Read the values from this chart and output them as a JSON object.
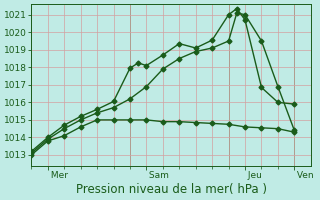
{
  "xlabel": "Pression niveau de la mer( hPa )",
  "bg_color": "#c0ebe5",
  "grid_color": "#d4a0a0",
  "line_color": "#1a5c1a",
  "ylim": [
    1012.4,
    1021.6
  ],
  "yticks": [
    1013,
    1014,
    1015,
    1016,
    1017,
    1018,
    1019,
    1020,
    1021
  ],
  "day_labels": [
    " Mer",
    " Sam",
    " Jeu",
    " Ven"
  ],
  "day_positions": [
    0.5,
    3.5,
    6.5,
    8.0
  ],
  "xmin": 0.0,
  "xmax": 8.5,
  "n_xgrid": 17,
  "marker": "D",
  "markersize": 2.5,
  "linewidth": 1.0,
  "xlabel_fontsize": 8.5,
  "tick_fontsize": 6.5,
  "series1_x": [
    0.0,
    0.5,
    1.0,
    1.5,
    2.0,
    2.5,
    3.0,
    3.5,
    4.0,
    4.5,
    5.0,
    5.5,
    6.0,
    6.5,
    7.0,
    7.5,
    8.0
  ],
  "series1_y": [
    1013.0,
    1013.8,
    1014.1,
    1014.6,
    1015.0,
    1015.0,
    1015.0,
    1015.0,
    1014.9,
    1014.9,
    1014.85,
    1014.8,
    1014.75,
    1014.6,
    1014.55,
    1014.5,
    1014.3
  ],
  "series2_x": [
    0.0,
    0.5,
    1.0,
    1.5,
    2.0,
    2.5,
    3.0,
    3.5,
    4.0,
    4.5,
    5.0,
    5.5,
    6.0,
    6.25,
    6.5,
    7.0,
    7.5,
    8.0
  ],
  "series2_y": [
    1013.1,
    1013.9,
    1014.5,
    1015.0,
    1015.4,
    1015.7,
    1016.2,
    1016.9,
    1017.9,
    1018.5,
    1018.9,
    1019.1,
    1019.5,
    1021.1,
    1021.0,
    1019.5,
    1016.9,
    1014.4
  ],
  "series3_x": [
    0.0,
    0.5,
    1.0,
    1.5,
    2.0,
    2.5,
    3.0,
    3.25,
    3.5,
    4.0,
    4.5,
    5.0,
    5.5,
    6.0,
    6.25,
    6.5,
    7.0,
    7.5,
    8.0
  ],
  "series3_y": [
    1013.2,
    1014.0,
    1014.7,
    1015.2,
    1015.6,
    1016.05,
    1017.95,
    1018.25,
    1018.1,
    1018.7,
    1019.35,
    1019.1,
    1019.55,
    1021.0,
    1021.35,
    1020.7,
    1016.85,
    1016.0,
    1015.9
  ],
  "xtick_minor": [
    0.0,
    0.5,
    1.0,
    1.5,
    2.0,
    2.5,
    3.0,
    3.5,
    4.0,
    4.5,
    5.0,
    5.5,
    6.0,
    6.5,
    7.0,
    7.5,
    8.0
  ]
}
